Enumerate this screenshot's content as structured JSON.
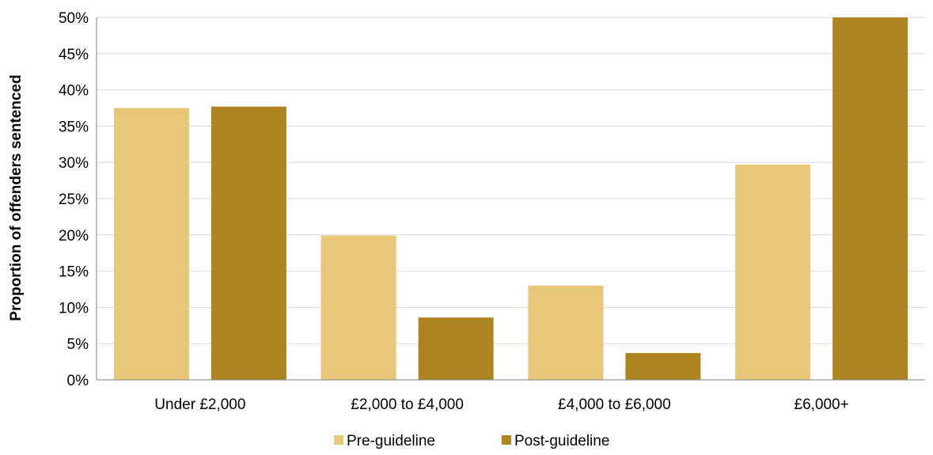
{
  "chart_data": {
    "type": "bar",
    "title": "",
    "xlabel": "",
    "ylabel": "Proportion of offenders sentenced",
    "categories": [
      "Under £2,000",
      "£2,000 to £4,000",
      "£4,000 to £6,000",
      "£6,000+"
    ],
    "series": [
      {
        "name": "Pre-guideline",
        "color": "#e8c677",
        "values": [
          37.5,
          19.9,
          13.0,
          29.7
        ]
      },
      {
        "name": "Post-guideline",
        "color": "#ae8420",
        "values": [
          37.7,
          8.6,
          3.7,
          50.0
        ]
      }
    ],
    "ylim": [
      0,
      50
    ],
    "yticks": [
      0,
      5,
      10,
      15,
      20,
      25,
      30,
      35,
      40,
      45,
      50
    ],
    "ytick_labels": [
      "0%",
      "5%",
      "10%",
      "15%",
      "20%",
      "25%",
      "30%",
      "35%",
      "40%",
      "45%",
      "50%"
    ],
    "grid": true,
    "gridline_color": "#d9d9d9",
    "legend_position": "bottom"
  }
}
